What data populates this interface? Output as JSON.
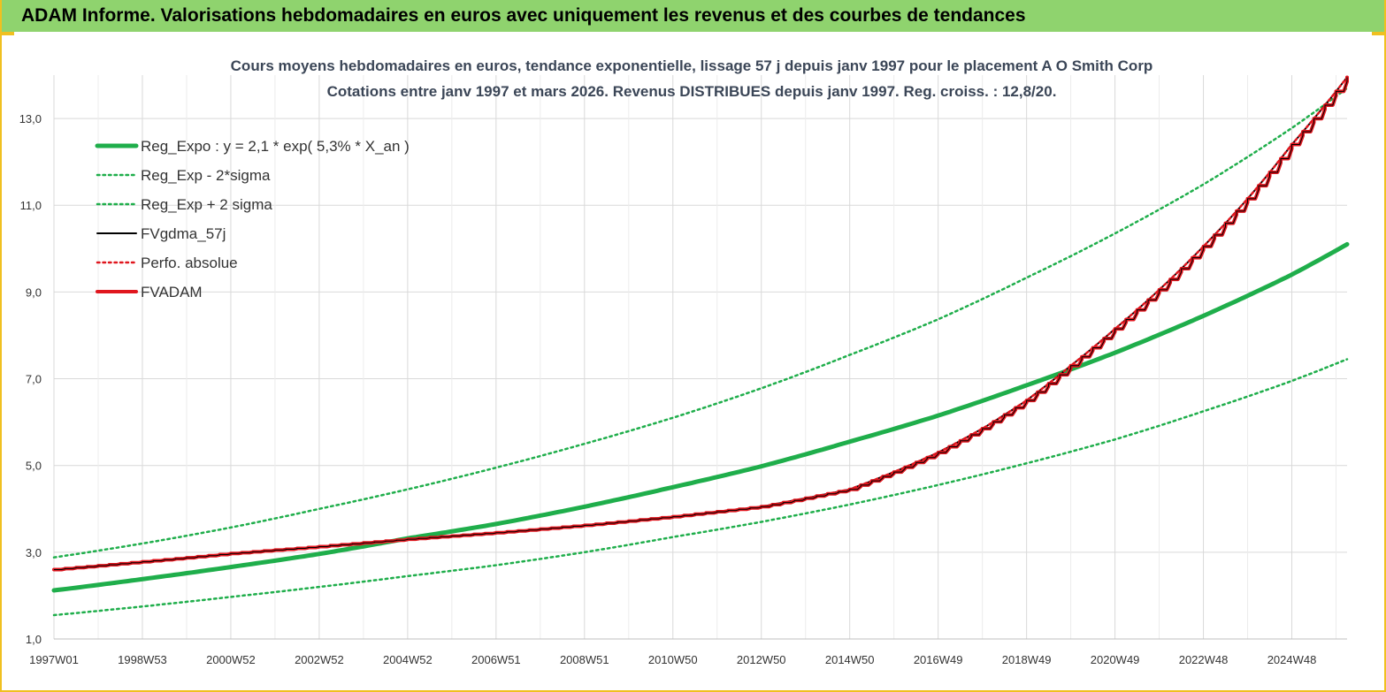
{
  "banner": {
    "title": "ADAM Informe. Valorisations hebdomadaires en euros avec uniquement les revenus et des courbes de tendances"
  },
  "chart_data": {
    "type": "line",
    "title": "Cours moyens hebdomadaires en euros, tendance exponentielle, lissage 57 j depuis janv 1997 pour le placement A O Smith Corp",
    "subtitle": "Cotations entre janv 1997 et mars 2026. Revenus DISTRIBUES depuis janv 1997. Reg. croiss. : 12,8/20.",
    "xlabel": "",
    "ylabel": "",
    "xlim": [
      1997.0,
      2026.25
    ],
    "ylim": [
      1.0,
      14.0
    ],
    "y_ticks": [
      1.0,
      3.0,
      5.0,
      7.0,
      9.0,
      11.0,
      13.0
    ],
    "y_tick_labels": [
      "1,0",
      "3,0",
      "5,0",
      "7,0",
      "9,0",
      "11,0",
      "13,0"
    ],
    "x_tick_labels": [
      "1997W01",
      "1998W53",
      "2000W52",
      "2002W52",
      "2004W52",
      "2006W51",
      "2008W51",
      "2010W50",
      "2012W50",
      "2014W50",
      "2016W49",
      "2018W49",
      "2020W49",
      "2022W48",
      "2024W48"
    ],
    "x_tick_positions": [
      1997.0,
      1999.0,
      2001.0,
      2003.0,
      2005.0,
      2007.0,
      2009.0,
      2011.0,
      2013.0,
      2015.0,
      2017.0,
      2019.0,
      2021.0,
      2023.0,
      2025.0
    ],
    "grid": true,
    "legend_position": "top-left",
    "series": [
      {
        "name": "Reg_Expo : y = 2,1 * exp( 5,3% *  X_an )",
        "color": "#1fae4b",
        "style": "solid-thick",
        "x": [
          1997,
          1999,
          2001,
          2003,
          2005,
          2007,
          2009,
          2011,
          2013,
          2015,
          2017,
          2019,
          2021,
          2023,
          2025,
          2026.25
        ],
        "values": [
          2.12,
          2.38,
          2.66,
          2.96,
          3.32,
          3.65,
          4.05,
          4.5,
          4.98,
          5.55,
          6.15,
          6.85,
          7.6,
          8.45,
          9.4,
          10.1
        ]
      },
      {
        "name": "Reg_Exp - 2*sigma",
        "color": "#1fae4b",
        "style": "dotted",
        "x": [
          1997,
          1999,
          2001,
          2003,
          2005,
          2007,
          2009,
          2011,
          2013,
          2015,
          2017,
          2019,
          2021,
          2023,
          2025,
          2026.25
        ],
        "values": [
          1.55,
          1.75,
          1.97,
          2.2,
          2.45,
          2.7,
          3.0,
          3.35,
          3.7,
          4.1,
          4.55,
          5.05,
          5.6,
          6.25,
          6.95,
          7.45
        ]
      },
      {
        "name": "Reg_Exp + 2 sigma",
        "color": "#1fae4b",
        "style": "dotted",
        "x": [
          1997,
          1999,
          2001,
          2003,
          2005,
          2007,
          2009,
          2011,
          2013,
          2015,
          2017,
          2019,
          2021,
          2023,
          2025,
          2026.25
        ],
        "values": [
          2.88,
          3.2,
          3.57,
          4.0,
          4.45,
          4.95,
          5.5,
          6.1,
          6.78,
          7.55,
          8.37,
          9.33,
          10.35,
          11.48,
          12.78,
          13.7
        ]
      },
      {
        "name": "FVgdma_57j",
        "color": "#000000",
        "style": "solid",
        "x": [
          1997,
          1999,
          2001,
          2003,
          2005,
          2007,
          2009,
          2011,
          2013,
          2015,
          2016,
          2017,
          2018,
          2019,
          2020,
          2021,
          2022,
          2023,
          2024,
          2025,
          2026.25
        ],
        "values": [
          2.6,
          2.78,
          2.97,
          3.13,
          3.3,
          3.45,
          3.62,
          3.82,
          4.05,
          4.45,
          4.85,
          5.3,
          5.85,
          6.5,
          7.3,
          8.15,
          9.05,
          10.05,
          11.15,
          12.4,
          13.95
        ]
      },
      {
        "name": "Perfo. absolue",
        "color": "#e0161e",
        "style": "dotted",
        "x": [
          1997,
          1999,
          2001,
          2003,
          2005,
          2007,
          2009,
          2011,
          2013,
          2015,
          2016,
          2017,
          2018,
          2019,
          2020,
          2021,
          2022,
          2023,
          2024,
          2025,
          2026.25
        ],
        "values": [
          2.6,
          2.78,
          2.97,
          3.13,
          3.3,
          3.45,
          3.62,
          3.82,
          4.05,
          4.45,
          4.85,
          5.3,
          5.85,
          6.5,
          7.3,
          8.15,
          9.05,
          10.05,
          11.15,
          12.4,
          13.95
        ]
      },
      {
        "name": "FVADAM",
        "color": "#e0161e",
        "style": "solid-thick-stepped",
        "x": [
          1997,
          1999,
          2001,
          2003,
          2005,
          2007,
          2009,
          2011,
          2013,
          2015,
          2016,
          2017,
          2018,
          2019,
          2020,
          2021,
          2022,
          2023,
          2024,
          2025,
          2026.25
        ],
        "values": [
          2.6,
          2.78,
          2.97,
          3.13,
          3.3,
          3.45,
          3.62,
          3.82,
          4.05,
          4.45,
          4.85,
          5.3,
          5.85,
          6.5,
          7.3,
          8.15,
          9.05,
          10.05,
          11.15,
          12.4,
          13.95
        ]
      }
    ]
  }
}
